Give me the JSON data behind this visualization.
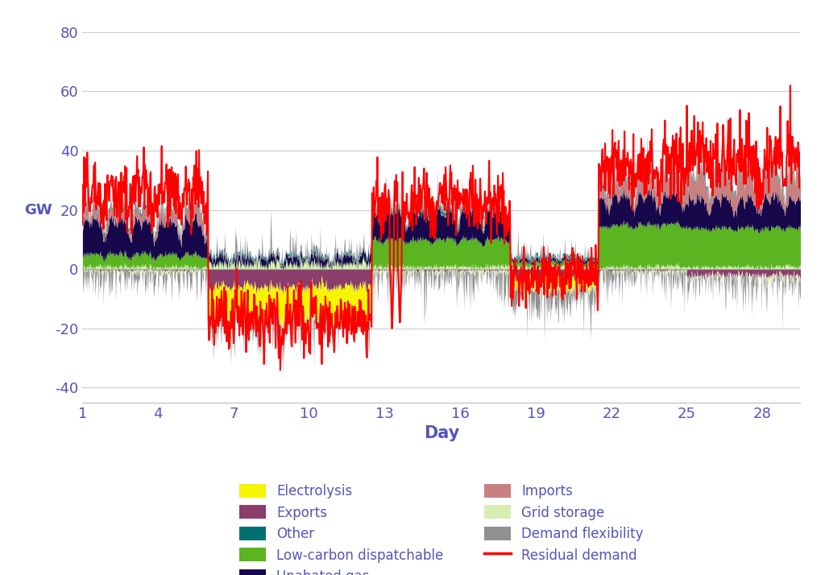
{
  "n_days": 29,
  "n_per_day": 48,
  "ylim": [
    -45,
    85
  ],
  "yticks": [
    -40,
    -20,
    0,
    20,
    40,
    60,
    80
  ],
  "xticks": [
    1,
    4,
    7,
    10,
    13,
    16,
    19,
    22,
    25,
    28
  ],
  "xlabel": "Day",
  "ylabel": "GW",
  "colors": {
    "electrolysis": "#F5F500",
    "other": "#007070",
    "unabated_gas": "#16084a",
    "grid_storage": "#d8edb0",
    "exports": "#8b3d6b",
    "low_carbon_dispatchable": "#5ab520",
    "imports": "#c88080",
    "demand_flexibility": "#909090",
    "residual_demand": "#ff0000"
  },
  "text_color": "#5555bb",
  "background_color": "#ffffff"
}
